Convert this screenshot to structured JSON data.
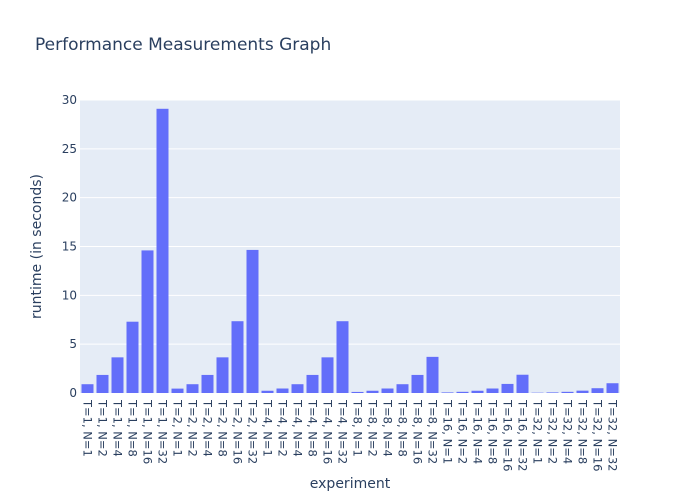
{
  "chart_data": {
    "type": "bar",
    "title": "Performance Measurements Graph",
    "xlabel": "experiment",
    "ylabel": "runtime (in seconds)",
    "ylim": [
      0,
      30
    ],
    "yticks": [
      0,
      5,
      10,
      15,
      20,
      25,
      30
    ],
    "grid": true,
    "legend": "none",
    "colors": {
      "bar": "#636efa",
      "plot_bg": "#e5ecf6",
      "grid": "#ffffff",
      "text": "#2a3f5f"
    },
    "categories": [
      "T=1, N=1",
      "T=1, N=2",
      "T=1, N=4",
      "T=1, N=8",
      "T=1, N=16",
      "T=1, N=32",
      "T=2, N=1",
      "T=2, N=2",
      "T=2, N=4",
      "T=2, N=8",
      "T=2, N=16",
      "T=2, N=32",
      "T=4, N=1",
      "T=4, N=2",
      "T=4, N=4",
      "T=4, N=8",
      "T=4, N=16",
      "T=4, N=32",
      "T=8, N=1",
      "T=8, N=2",
      "T=8, N=4",
      "T=8, N=8",
      "T=8, N=16",
      "T=8, N=32",
      "T=16, N=1",
      "T=16, N=2",
      "T=16, N=4",
      "T=16, N=8",
      "T=16, N=16",
      "T=16, N=32",
      "T=32, N=1",
      "T=32, N=2",
      "T=32, N=4",
      "T=32, N=8",
      "T=32, N=16",
      "T=32, N=32"
    ],
    "values": [
      0.9,
      1.85,
      3.65,
      7.3,
      14.6,
      29.1,
      0.45,
      0.9,
      1.85,
      3.65,
      7.35,
      14.65,
      0.23,
      0.46,
      0.9,
      1.85,
      3.65,
      7.35,
      0.11,
      0.23,
      0.46,
      0.9,
      1.85,
      3.7,
      0.06,
      0.12,
      0.23,
      0.46,
      0.93,
      1.87,
      0.03,
      0.06,
      0.12,
      0.24,
      0.49,
      1.0
    ]
  }
}
